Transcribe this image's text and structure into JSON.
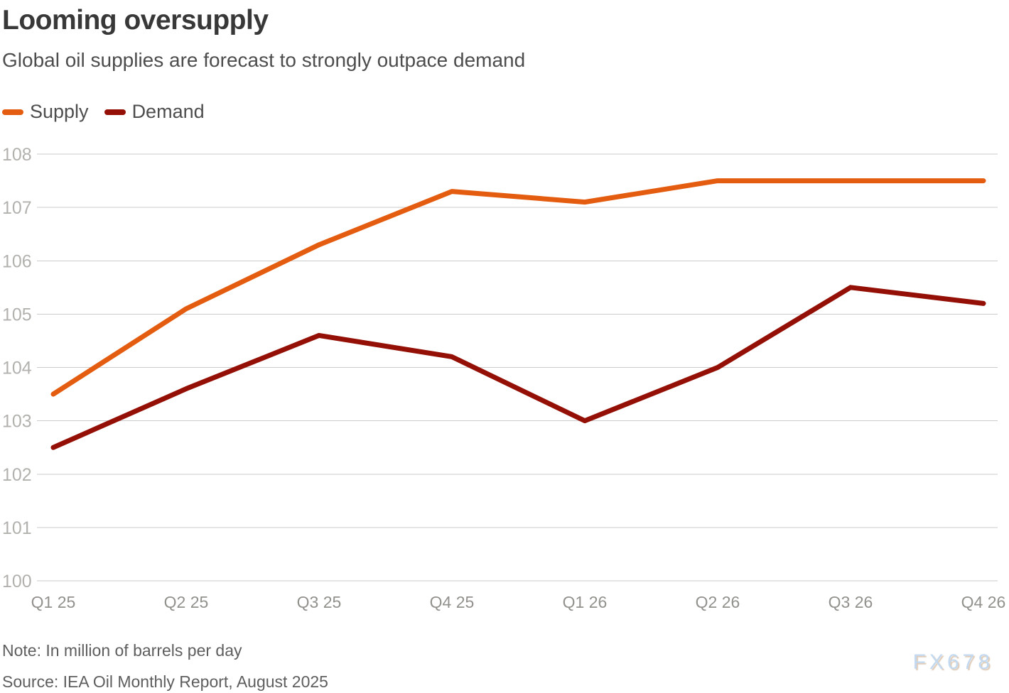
{
  "title": "Looming oversupply",
  "subtitle": "Global oil supplies are forecast to strongly outpace demand",
  "legend": [
    {
      "label": "Supply",
      "color": "#e45c0f"
    },
    {
      "label": "Demand",
      "color": "#941006"
    }
  ],
  "note": "Note: In million of barrels per day",
  "source": "Source: IEA Oil Monthly Report, August 2025",
  "watermark": "FX678",
  "colors": {
    "supply": "#e45c0f",
    "demand": "#941006",
    "gridline": "#cbcbcb"
  },
  "chart_data": {
    "type": "line",
    "title": "Looming oversupply",
    "subtitle": "Global oil supplies are forecast to strongly outpace demand",
    "xlabel": "",
    "ylabel": "In million of barrels per day",
    "categories": [
      "Q1 25",
      "Q2 25",
      "Q3 25",
      "Q4 25",
      "Q1 26",
      "Q2 26",
      "Q3 26",
      "Q4 26"
    ],
    "series": [
      {
        "name": "Supply",
        "color": "#e45c0f",
        "values": [
          103.5,
          105.1,
          106.3,
          107.3,
          107.1,
          107.5,
          107.5,
          107.5
        ]
      },
      {
        "name": "Demand",
        "color": "#941006",
        "values": [
          102.5,
          103.6,
          104.6,
          104.2,
          103.0,
          104.0,
          105.5,
          105.2
        ]
      }
    ],
    "ylim": [
      100,
      108
    ],
    "yticks": [
      100,
      101,
      102,
      103,
      104,
      105,
      106,
      107,
      108
    ],
    "grid": true,
    "legend_position": "top-left"
  }
}
